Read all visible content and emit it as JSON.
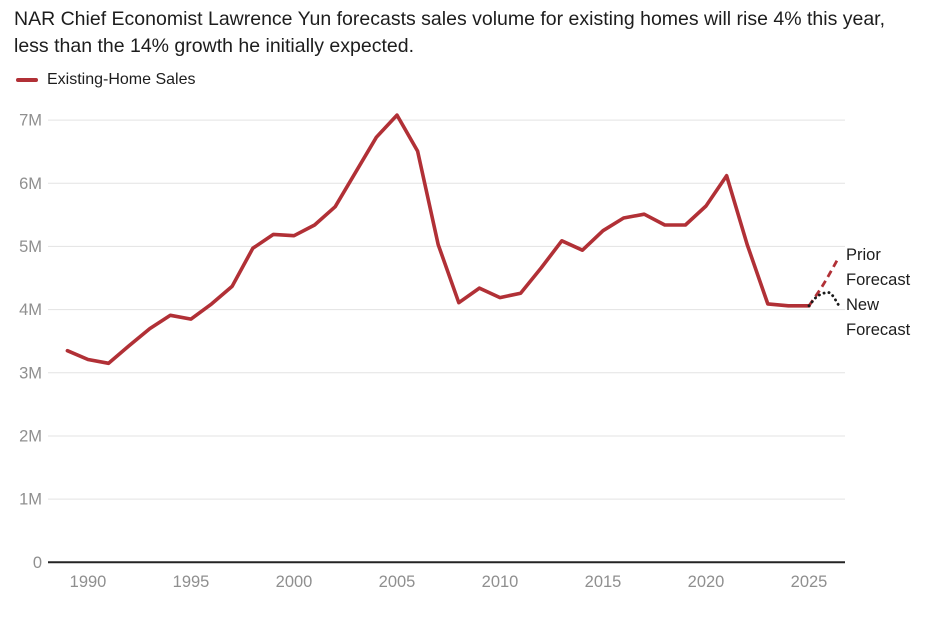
{
  "chart_data": {
    "type": "line",
    "title": "NAR Chief Economist Lawrence Yun forecasts sales volume for existing homes will rise 4% this year, less than the 14% growth he initially expected.",
    "unit": "millions of existing homes sold per year",
    "legend_position": "top-left",
    "grid": "horizontal-only",
    "xlim": [
      1988.3,
      2027
    ],
    "ylim": [
      0,
      7.35
    ],
    "x_ticks": [
      "1990",
      "1995",
      "2000",
      "2005",
      "2010",
      "2015",
      "2020",
      "2025"
    ],
    "y_ticks": [
      {
        "value": 0,
        "label": "0"
      },
      {
        "value": 1,
        "label": "1M"
      },
      {
        "value": 2,
        "label": "2M"
      },
      {
        "value": 3,
        "label": "3M"
      },
      {
        "value": 4,
        "label": "4M"
      },
      {
        "value": 5,
        "label": "5M"
      },
      {
        "value": 6,
        "label": "6M"
      },
      {
        "value": 7,
        "label": "7M"
      }
    ],
    "series": [
      {
        "name": "Existing-Home Sales",
        "role": "actual",
        "line_style": "solid",
        "color": "#b13036",
        "width": 3.6,
        "smooth": false,
        "x": [
          1989,
          1990,
          1991,
          1992,
          1993,
          1994,
          1995,
          1996,
          1997,
          1998,
          1999,
          2000,
          2001,
          2002,
          2003,
          2004,
          2005,
          2006,
          2007,
          2008,
          2009,
          2010,
          2011,
          2012,
          2013,
          2014,
          2015,
          2016,
          2017,
          2018,
          2019,
          2020,
          2021,
          2022,
          2023,
          2024,
          2025
        ],
        "values": [
          3.35,
          3.21,
          3.15,
          3.43,
          3.7,
          3.91,
          3.85,
          4.09,
          4.37,
          4.97,
          5.19,
          5.17,
          5.34,
          5.63,
          6.18,
          6.73,
          7.08,
          6.51,
          5.03,
          4.11,
          4.34,
          4.19,
          4.26,
          4.66,
          5.09,
          4.94,
          5.25,
          5.45,
          5.51,
          5.34,
          5.34,
          5.64,
          6.12,
          5.03,
          4.09,
          4.06,
          4.06
        ]
      },
      {
        "name": "Prior Forecast",
        "role": "forecast",
        "line_style": "dashed",
        "color": "#b13036",
        "width": 2.8,
        "smooth": true,
        "x": [
          2025,
          2025.7,
          2026.4
        ],
        "values": [
          4.06,
          4.4,
          4.8
        ]
      },
      {
        "name": "New Forecast",
        "role": "forecast",
        "line_style": "dotted",
        "color": "#1a1a1a",
        "width": 2.8,
        "smooth": true,
        "x": [
          2025,
          2025.4,
          2025.85,
          2026.1,
          2026.42
        ],
        "values": [
          4.06,
          4.21,
          4.27,
          4.24,
          4.08
        ]
      }
    ],
    "annotations": {
      "prior": "Prior Forecast",
      "new": "New Forecast"
    }
  },
  "colors": {
    "accent_red": "#b13036",
    "text_primary": "#1d1d1d",
    "axis_label": "#8f8f8f",
    "gridline": "#e3e3e3",
    "baseline": "#242424",
    "background": "#ffffff"
  }
}
